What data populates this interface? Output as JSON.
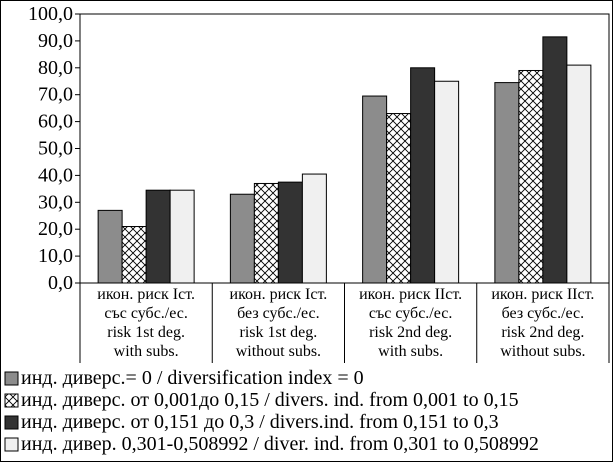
{
  "chart_data": {
    "type": "bar",
    "ylim": [
      0,
      100
    ],
    "yticks": [
      "0,0",
      "10,0",
      "20,0",
      "30,0",
      "40,0",
      "50,0",
      "60,0",
      "70,0",
      "80,0",
      "90,0",
      "100,0"
    ],
    "categories": [
      [
        "икон. риск Iст.",
        "със субс./ес.",
        "risk 1st deg.",
        "with subs."
      ],
      [
        "икон. риск Iст.",
        "без субс./ес.",
        "risk 1st deg.",
        "without subs."
      ],
      [
        "икон. риск IIст.",
        "със субс./ес.",
        "risk 2nd deg.",
        "with subs."
      ],
      [
        "икон. риск IIст.",
        "без субс./ес.",
        "risk 2nd deg.",
        "without subs."
      ]
    ],
    "series": [
      {
        "name": "инд. диверс.= 0 / diversification index = 0",
        "values": [
          27,
          33,
          69.5,
          74.5
        ]
      },
      {
        "name": "инд. диверс. от 0,001до 0,15 / divers. ind. from 0,001 to 0,15",
        "values": [
          21,
          37,
          63,
          79
        ]
      },
      {
        "name": "инд. диверс. от 0,151 до 0,3 / divers.ind. from 0,151 to 0,3",
        "values": [
          34.5,
          37.5,
          80,
          91.5
        ]
      },
      {
        "name": "инд. дивер. 0,301-0,508992 / diver. ind. from 0,301 to 0,508992",
        "values": [
          34.5,
          40.5,
          75,
          81
        ]
      }
    ],
    "colors": [
      "#8c8c8c",
      "hatch",
      "#333333",
      "#f0f0f0"
    ],
    "legend_position": "bottom",
    "grid": false
  }
}
